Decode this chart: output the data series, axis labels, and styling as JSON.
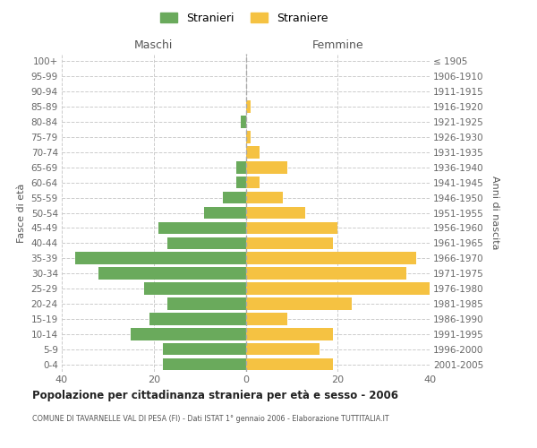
{
  "age_groups": [
    "100+",
    "95-99",
    "90-94",
    "85-89",
    "80-84",
    "75-79",
    "70-74",
    "65-69",
    "60-64",
    "55-59",
    "50-54",
    "45-49",
    "40-44",
    "35-39",
    "30-34",
    "25-29",
    "20-24",
    "15-19",
    "10-14",
    "5-9",
    "0-4"
  ],
  "birth_years": [
    "≤ 1905",
    "1906-1910",
    "1911-1915",
    "1916-1920",
    "1921-1925",
    "1926-1930",
    "1931-1935",
    "1936-1940",
    "1941-1945",
    "1946-1950",
    "1951-1955",
    "1956-1960",
    "1961-1965",
    "1966-1970",
    "1971-1975",
    "1976-1980",
    "1981-1985",
    "1986-1990",
    "1991-1995",
    "1996-2000",
    "2001-2005"
  ],
  "maschi": [
    0,
    0,
    0,
    0,
    1,
    0,
    0,
    2,
    2,
    5,
    9,
    19,
    17,
    37,
    32,
    22,
    17,
    21,
    25,
    18,
    18
  ],
  "femmine": [
    0,
    0,
    0,
    1,
    0,
    1,
    3,
    9,
    3,
    8,
    13,
    20,
    19,
    37,
    35,
    40,
    23,
    9,
    19,
    16,
    19
  ],
  "maschi_color": "#6aaa5c",
  "femmine_color": "#f5c242",
  "background_color": "#ffffff",
  "grid_color": "#cccccc",
  "title": "Popolazione per cittadinanza straniera per età e sesso - 2006",
  "subtitle": "COMUNE DI TAVARNELLE VAL DI PESA (FI) - Dati ISTAT 1° gennaio 2006 - Elaborazione TUTTITALIA.IT",
  "ylabel_left": "Fasce di età",
  "ylabel_right": "Anni di nascita",
  "xlabel_left": "Maschi",
  "xlabel_right": "Femmine",
  "legend_stranieri": "Stranieri",
  "legend_straniere": "Straniere",
  "xlim": 40,
  "bar_height": 0.8
}
